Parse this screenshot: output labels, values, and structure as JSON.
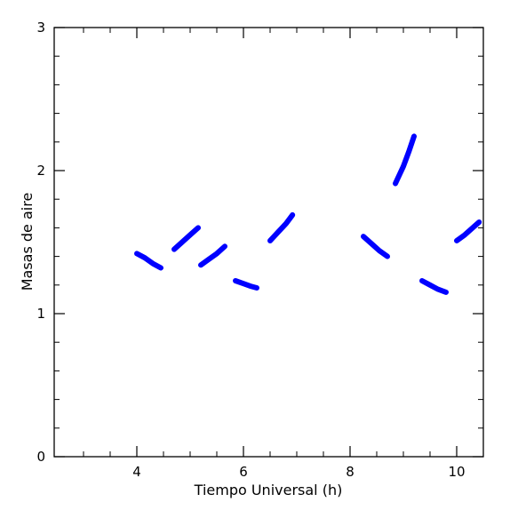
{
  "chart_data": {
    "type": "line",
    "xlabel": "Tiempo Universal (h)",
    "ylabel": "Masas de aire",
    "xlim": [
      2.45,
      10.5
    ],
    "ylim": [
      0,
      3
    ],
    "xticks": [
      4,
      6,
      8,
      10
    ],
    "yticks": [
      0,
      1,
      2,
      3
    ],
    "grid": false,
    "series_color": "#0000ff",
    "series": [
      {
        "x": [
          4.0,
          4.15,
          4.3,
          4.45
        ],
        "y": [
          1.42,
          1.39,
          1.35,
          1.32
        ]
      },
      {
        "x": [
          4.7,
          4.85,
          5.0,
          5.15
        ],
        "y": [
          1.45,
          1.5,
          1.55,
          1.6
        ]
      },
      {
        "x": [
          5.2,
          5.35,
          5.5,
          5.65
        ],
        "y": [
          1.34,
          1.38,
          1.42,
          1.47
        ]
      },
      {
        "x": [
          5.85,
          6.0,
          6.15,
          6.25
        ],
        "y": [
          1.23,
          1.21,
          1.19,
          1.18
        ]
      },
      {
        "x": [
          6.5,
          6.65,
          6.8,
          6.92
        ],
        "y": [
          1.51,
          1.57,
          1.63,
          1.69
        ]
      },
      {
        "x": [
          8.25,
          8.4,
          8.55,
          8.7
        ],
        "y": [
          1.54,
          1.49,
          1.44,
          1.4
        ]
      },
      {
        "x": [
          8.85,
          9.0,
          9.1,
          9.2
        ],
        "y": [
          1.91,
          2.03,
          2.13,
          2.24
        ]
      },
      {
        "x": [
          9.35,
          9.5,
          9.65,
          9.8
        ],
        "y": [
          1.23,
          1.2,
          1.17,
          1.15
        ]
      },
      {
        "x": [
          10.0,
          10.15,
          10.3,
          10.42
        ],
        "y": [
          1.51,
          1.55,
          1.6,
          1.64
        ]
      }
    ]
  }
}
